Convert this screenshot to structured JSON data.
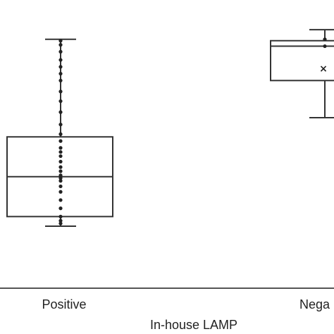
{
  "chart_data": {
    "type": "box",
    "title": "",
    "xlabel": "In-house LAMP",
    "ylabel": "",
    "categories": [
      "Positive",
      "Negative"
    ],
    "category_labels_shown": [
      "Positive",
      "Nega"
    ],
    "boxes": [
      {
        "category": "Positive",
        "whisker_low": 0.2,
        "q1": 0.27,
        "median": 0.56,
        "q3": 0.85,
        "whisker_high": 1.56,
        "mean": null,
        "points": [
          0.22,
          0.24,
          0.27,
          0.33,
          0.39,
          0.45,
          0.49,
          0.53,
          0.55,
          0.57,
          0.6,
          0.63,
          0.67,
          0.71,
          0.74,
          0.77,
          0.82,
          0.87,
          0.94,
          1.03,
          1.11,
          1.18,
          1.26,
          1.31,
          1.36,
          1.41,
          1.47,
          1.52,
          1.55
        ]
      },
      {
        "category": "Negative",
        "whisker_low": 0.99,
        "q1": 1.26,
        "median": 1.51,
        "q3": 1.55,
        "whisker_high": 1.63,
        "mean": 1.35,
        "points": [
          1.56,
          1.51
        ]
      }
    ],
    "grid": false,
    "legend": "none"
  }
}
